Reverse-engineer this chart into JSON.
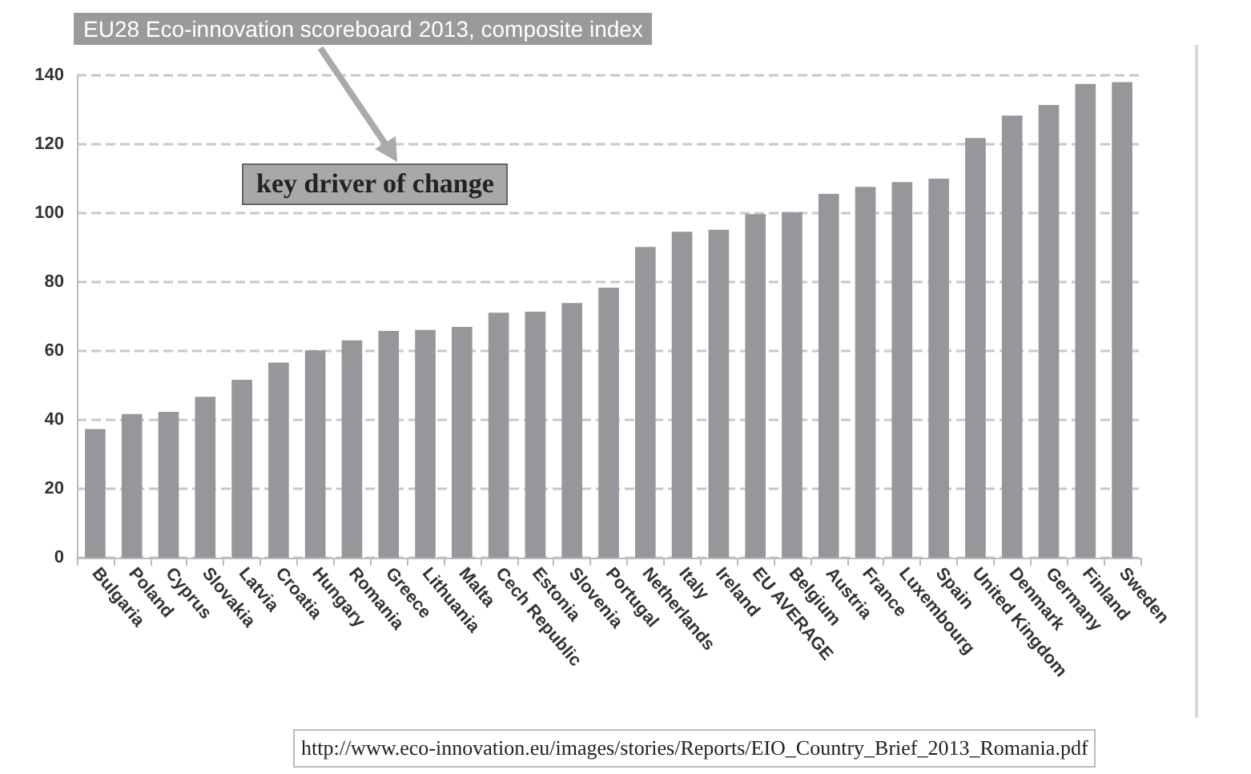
{
  "chart_data": {
    "type": "bar",
    "title": "EU28 Eco-innovation scoreboard 2013, composite index",
    "annotations": [
      "key driver of change",
      "http://www.eco-innovation.eu/images/stories/Reports/EIO_Country_Brief_2013_Romania.pdf"
    ],
    "categories": [
      "Bulgaria",
      "Poland",
      "Cyprus",
      "Slovakia",
      "Latvia",
      "Croatia",
      "Hungary",
      "Romania",
      "Greece",
      "Lithuania",
      "Malta",
      "Cech Republic",
      "Estonia",
      "Slovenia",
      "Portugal",
      "Netherlands",
      "Italy",
      "Ireland",
      "EU AVERAGE",
      "Belgium",
      "Austria",
      "France",
      "Luxembourg",
      "Spain",
      "United Kingdom",
      "Denmark",
      "Germany",
      "Finland",
      "Sweden"
    ],
    "values": [
      37.3,
      41.7,
      42.3,
      46.7,
      51.6,
      56.6,
      60.2,
      63.1,
      65.8,
      66.1,
      67.0,
      71.1,
      71.4,
      73.9,
      78.4,
      90.2,
      94.6,
      95.2,
      99.7,
      100.3,
      105.6,
      107.6,
      109.0,
      110.0,
      121.8,
      128.3,
      131.4,
      137.5,
      138.0
    ],
    "color": "#97979b",
    "ylim": [
      0,
      140
    ],
    "yticks": [
      0,
      20,
      40,
      60,
      80,
      100,
      120,
      140
    ],
    "grid": "y"
  }
}
